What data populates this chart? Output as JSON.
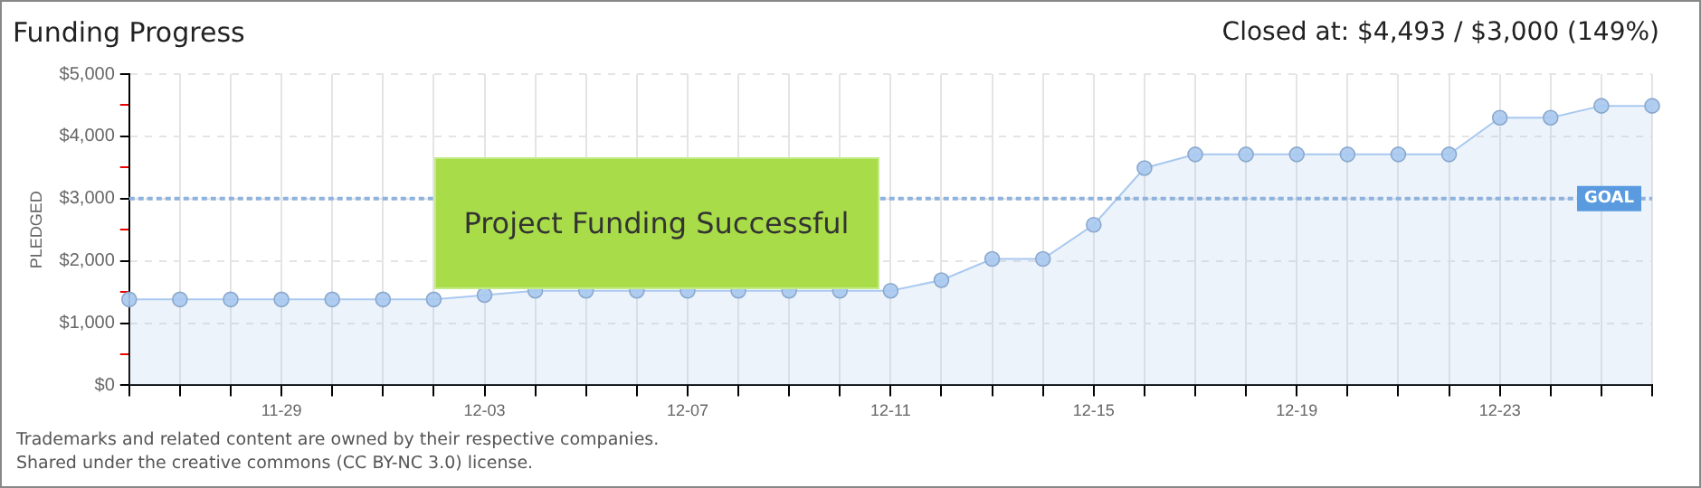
{
  "chart_data": {
    "type": "area",
    "title": "Funding Progress",
    "subtitle": "Closed at: $4,493 / $3,000 (149%)",
    "ylabel": "PLEDGED",
    "categories": [
      null,
      null,
      null,
      "11-29",
      null,
      null,
      null,
      "12-03",
      null,
      null,
      null,
      "12-07",
      null,
      null,
      null,
      "12-11",
      null,
      null,
      null,
      "12-15",
      null,
      null,
      null,
      "12-19",
      null,
      null,
      null,
      "12-23",
      null,
      null,
      null
    ],
    "series": [
      {
        "color": "#a9c9ef",
        "values": [
          1380,
          1380,
          1380,
          1380,
          1380,
          1380,
          1380,
          1450,
          1520,
          1520,
          1520,
          1520,
          1520,
          1520,
          1520,
          1520,
          1690,
          2030,
          2030,
          2580,
          3490,
          3710,
          3710,
          3710,
          3710,
          3710,
          3710,
          4300,
          4300,
          4490,
          4490
        ]
      }
    ],
    "ylim": [
      0,
      5000
    ],
    "yticks": [
      {
        "value": 0,
        "label": "$0"
      },
      {
        "value": 500,
        "label": null
      },
      {
        "value": 1000,
        "label": "$1,000"
      },
      {
        "value": 1500,
        "label": null
      },
      {
        "value": 2000,
        "label": "$2,000"
      },
      {
        "value": 2500,
        "label": null
      },
      {
        "value": 3000,
        "label": "$3,000"
      },
      {
        "value": 3500,
        "label": null
      },
      {
        "value": 4000,
        "label": "$4,000"
      },
      {
        "value": 4500,
        "label": null
      },
      {
        "value": 5000,
        "label": "$5,000"
      }
    ],
    "ref_lines": [
      {
        "axis": "y",
        "value": 3000,
        "label": "GOAL",
        "color": "#8fb3dd",
        "line_style": "dashed"
      }
    ],
    "annotations": [
      "Project Funding Successful",
      "Trademarks and related content are owned by their respective companies.",
      "Shared under the creative commons (CC BY-NC 3.0) license."
    ],
    "grid": true,
    "marker": "circle",
    "legend": false
  }
}
